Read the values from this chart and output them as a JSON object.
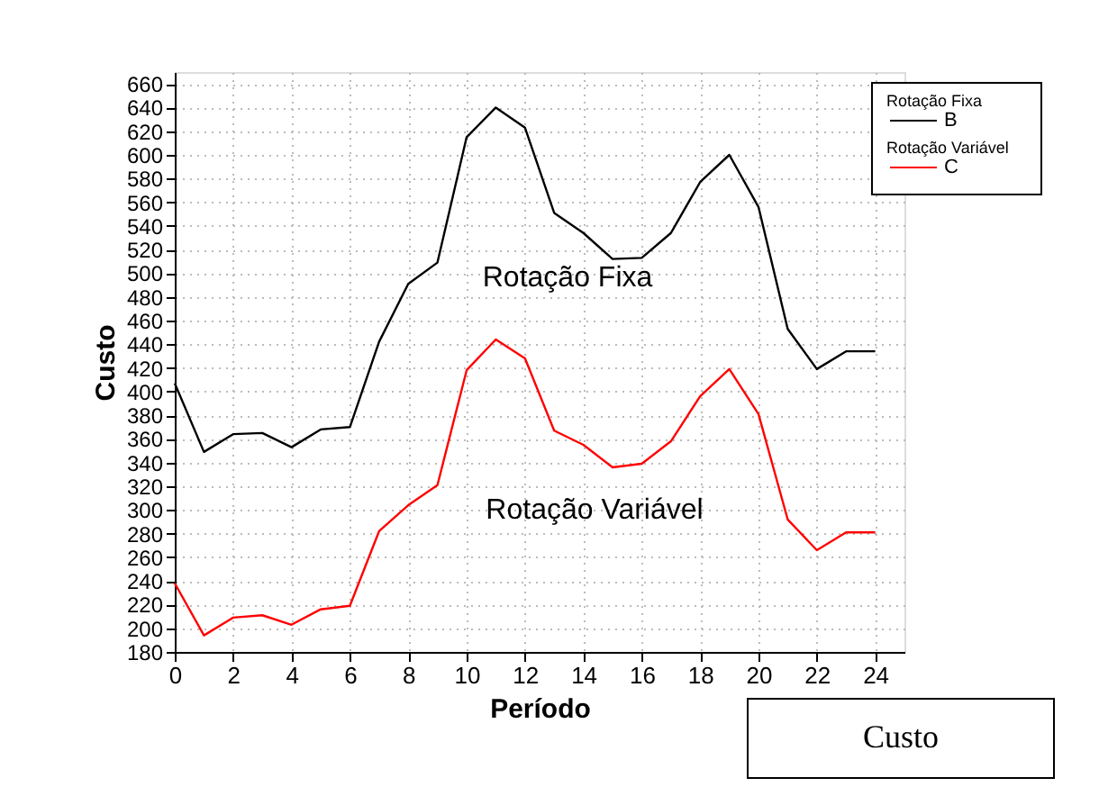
{
  "chart_data": {
    "type": "line",
    "xlabel": "Período",
    "ylabel": "Custo",
    "x": [
      0,
      1,
      2,
      3,
      4,
      5,
      6,
      7,
      8,
      9,
      10,
      11,
      12,
      13,
      14,
      15,
      16,
      17,
      18,
      19,
      20,
      21,
      22,
      23,
      24
    ],
    "series": [
      {
        "name": "B",
        "color": "#000000",
        "values": [
          407,
          349,
          364,
          365,
          353,
          368,
          370,
          442,
          491,
          509,
          615,
          640,
          623,
          551,
          534,
          512,
          513,
          534,
          577,
          600,
          556,
          453,
          419,
          434,
          434
        ]
      },
      {
        "name": "C",
        "color": "#ff0000",
        "values": [
          238,
          194,
          209,
          211,
          203,
          216,
          219,
          282,
          304,
          321,
          418,
          444,
          428,
          367,
          355,
          336,
          339,
          358,
          396,
          419,
          381,
          292,
          266,
          281,
          281
        ]
      }
    ],
    "xlim": [
      0,
      25
    ],
    "xticks": [
      0,
      2,
      4,
      6,
      8,
      10,
      12,
      14,
      16,
      18,
      20,
      22,
      24
    ],
    "ylim": [
      180,
      670
    ],
    "yticks": [
      180,
      200,
      220,
      240,
      260,
      280,
      300,
      320,
      340,
      360,
      380,
      400,
      420,
      440,
      460,
      480,
      500,
      520,
      540,
      560,
      580,
      600,
      620,
      640,
      660
    ],
    "grid": true,
    "legend": "top right",
    "line_style": "solid",
    "marker": "none",
    "annotations": [
      "Rotação Fixa",
      "Rotação Variável",
      "Rotação Fixa",
      "Rotação Variável",
      "Custo"
    ]
  }
}
